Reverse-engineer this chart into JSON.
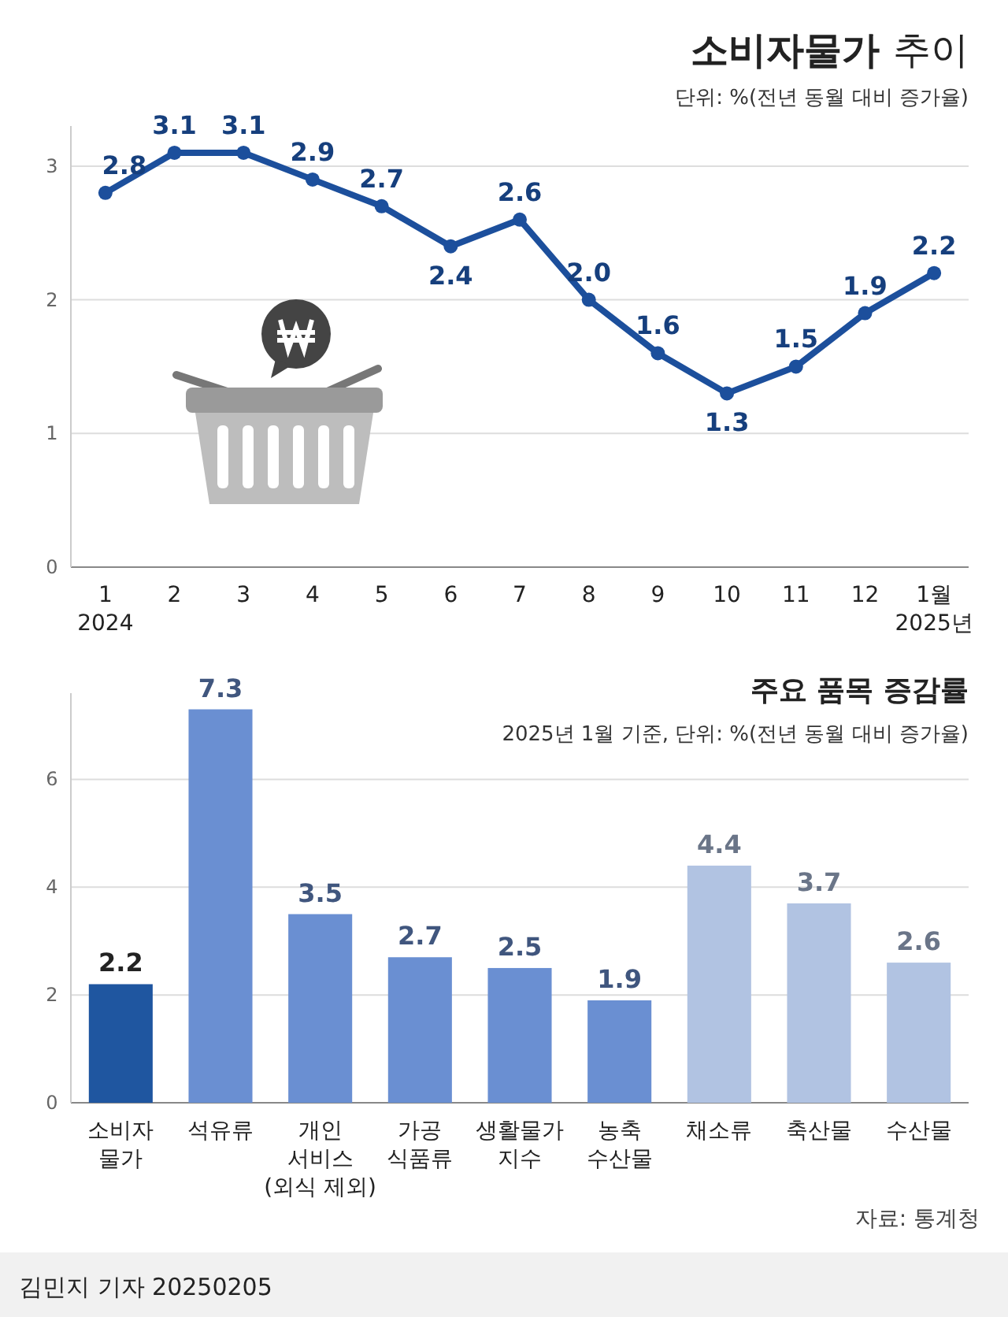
{
  "chart_data": [
    {
      "type": "line",
      "title": "소비자물가 추이",
      "subtitle": "단위: %(전년 동월 대비 증가율)",
      "categories": [
        "1\n2024",
        "2",
        "3",
        "4",
        "5",
        "6",
        "7",
        "8",
        "9",
        "10",
        "11",
        "12",
        "1월\n2025년"
      ],
      "series": [
        {
          "color": "#1c4f9c",
          "values": [
            2.8,
            3.1,
            3.1,
            2.9,
            2.7,
            2.4,
            2.6,
            2.0,
            1.6,
            1.3,
            1.5,
            1.9,
            2.2
          ],
          "value_labels": [
            "2.8",
            "3.1",
            "3.1",
            "2.9",
            "2.7",
            "2.4",
            "2.6",
            "2.0",
            "1.6",
            "1.3",
            "1.5",
            "1.9",
            "2.2"
          ]
        }
      ],
      "ylim": [
        0,
        3.3
      ],
      "yticks": [
        0,
        1,
        2,
        3
      ],
      "grid": "y",
      "marker": "circle",
      "line_style": "solid"
    },
    {
      "type": "bar",
      "title": "주요 품목 증감률",
      "subtitle": "2025년 1월 기준, 단위: %(전년 동월 대비 증가율)",
      "categories": [
        "소비자\n물가",
        "석유류",
        "개인\n서비스\n(외식 제외)",
        "가공\n식품류",
        "생활물가\n지수",
        "농축\n수산물",
        "채소류",
        "축산물",
        "수산물"
      ],
      "values": [
        2.2,
        7.3,
        3.5,
        2.7,
        2.5,
        1.9,
        4.4,
        3.7,
        2.6
      ],
      "colors": [
        "#1f56a0",
        "#6a8fd2",
        "#6a8fd2",
        "#6a8fd2",
        "#6a8fd2",
        "#6a8fd2",
        "#b1c3e2",
        "#b1c3e2",
        "#b1c3e2"
      ],
      "ylim": [
        0,
        7.6
      ],
      "yticks": [
        0,
        2,
        4,
        6
      ],
      "grid": "y",
      "data_labels": true,
      "annotations": [
        "자료: 통계청",
        "김민지 기자 20250205"
      ]
    }
  ]
}
